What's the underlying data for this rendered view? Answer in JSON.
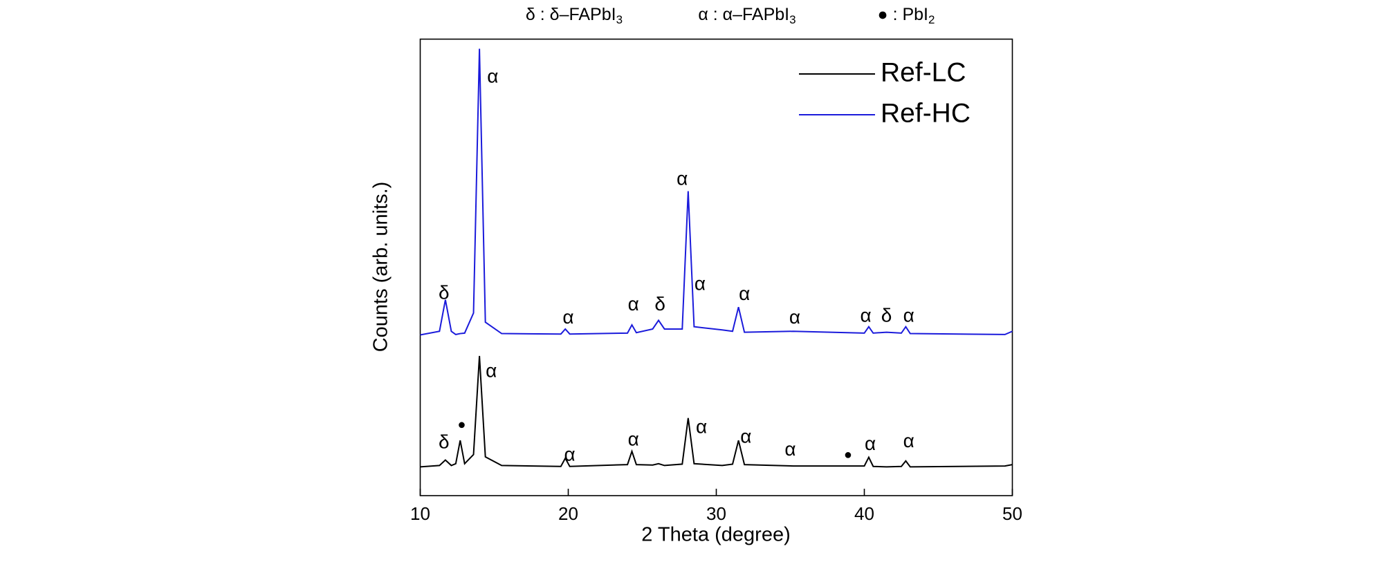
{
  "chart_data": {
    "type": "line",
    "header_note": [
      {
        "text": "δ : δ–FAPbI",
        "sub": "3"
      },
      {
        "text": "α : α–FAPbI",
        "sub": "3"
      },
      {
        "text": "● : PbI",
        "sub": "2"
      }
    ],
    "x_label": "2 Theta (degree)",
    "y_label": "Counts (arb. units.)",
    "x": [
      10,
      11.3,
      11.7,
      12.1,
      12.4,
      12.7,
      13.0,
      13.6,
      14.0,
      14.4,
      15.5,
      19.5,
      19.8,
      20.1,
      24.0,
      24.3,
      24.6,
      25.7,
      26.1,
      26.5,
      27.7,
      28.1,
      28.5,
      30.4,
      31.1,
      31.5,
      31.9,
      35.2,
      40.0,
      40.3,
      40.6,
      41.5,
      42.5,
      42.8,
      43.1,
      49.5,
      50
    ],
    "series": [
      {
        "name": "Ref-LC",
        "color": "#000000",
        "values": [
          6.3,
          6.6,
          7.8,
          6.6,
          7.0,
          12.1,
          7.0,
          9,
          30.6,
          8.5,
          6.6,
          6.4,
          8.2,
          6.4,
          6.8,
          9.7,
          6.8,
          6.7,
          7.0,
          6.6,
          6.9,
          17.0,
          7.0,
          6.6,
          6.9,
          12.1,
          6.8,
          6.5,
          6.5,
          8.4,
          6.4,
          6.3,
          6.4,
          7.6,
          6.3,
          6.5,
          6.8
        ]
      },
      {
        "name": "Ref-HC",
        "color": "#1a1adb",
        "values": [
          35.2,
          36,
          42.9,
          36,
          35.3,
          35.5,
          35.6,
          40,
          97.9,
          38,
          35.5,
          35.4,
          36.5,
          35.4,
          35.6,
          37.4,
          35.7,
          36.5,
          38.4,
          36.5,
          36.5,
          66.7,
          37,
          36.3,
          36,
          41.3,
          35.8,
          36,
          35.6,
          37.0,
          35.6,
          35.8,
          35.6,
          37.0,
          35.5,
          35.3,
          36
        ]
      }
    ],
    "annotations": [
      {
        "text": "α",
        "x": 14.9,
        "y": 91.6
      },
      {
        "text": "δ",
        "x": 11.6,
        "y": 44.2
      },
      {
        "text": "α",
        "x": 27.7,
        "y": 69.2
      },
      {
        "text": "α",
        "x": 28.9,
        "y": 46.2
      },
      {
        "text": "α",
        "x": 31.9,
        "y": 44.0
      },
      {
        "text": "α",
        "x": 20.0,
        "y": 38.8
      },
      {
        "text": "α",
        "x": 24.4,
        "y": 41.7
      },
      {
        "text": "δ",
        "x": 26.2,
        "y": 41.7
      },
      {
        "text": "α",
        "x": 35.3,
        "y": 38.8
      },
      {
        "text": "α",
        "x": 40.1,
        "y": 39.2
      },
      {
        "text": "δ",
        "x": 41.5,
        "y": 39.2
      },
      {
        "text": "α",
        "x": 43.0,
        "y": 39.2
      },
      {
        "text": "α",
        "x": 14.8,
        "y": 27.1
      },
      {
        "text": "●",
        "x": 12.8,
        "y": 15.4
      },
      {
        "text": "δ",
        "x": 11.6,
        "y": 11.5
      },
      {
        "text": "α",
        "x": 20.1,
        "y": 8.8
      },
      {
        "text": "α",
        "x": 24.4,
        "y": 12.1
      },
      {
        "text": "α",
        "x": 29.0,
        "y": 14.8
      },
      {
        "text": "α",
        "x": 32.0,
        "y": 12.7
      },
      {
        "text": "α",
        "x": 35.0,
        "y": 9.9
      },
      {
        "text": "●",
        "x": 38.9,
        "y": 8.8
      },
      {
        "text": "α",
        "x": 40.4,
        "y": 11.1
      },
      {
        "text": "α",
        "x": 43.0,
        "y": 11.7
      }
    ],
    "xlim": [
      10,
      50
    ],
    "xticks": [
      10,
      20,
      30,
      40,
      50
    ],
    "ylim": [
      0,
      100
    ],
    "legend": "upper-right"
  }
}
